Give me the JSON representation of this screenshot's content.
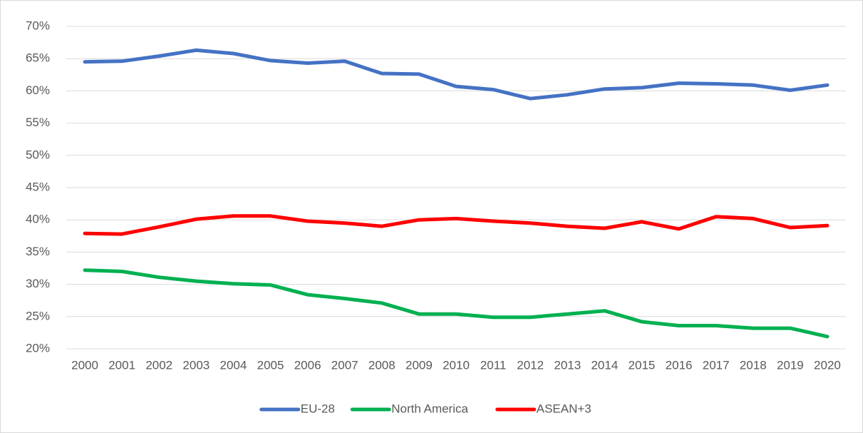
{
  "chart_data": {
    "type": "line",
    "categories": [
      "2000",
      "2001",
      "2002",
      "2003",
      "2004",
      "2005",
      "2006",
      "2007",
      "2008",
      "2009",
      "2010",
      "2011",
      "2012",
      "2013",
      "2014",
      "2015",
      "2016",
      "2017",
      "2018",
      "2019",
      "2020"
    ],
    "series": [
      {
        "name": "EU-28",
        "color": "#4472c4",
        "values": [
          64.5,
          64.6,
          65.4,
          66.3,
          65.8,
          64.7,
          64.3,
          64.6,
          62.7,
          62.6,
          60.7,
          60.2,
          58.8,
          59.4,
          60.3,
          60.5,
          61.2,
          61.1,
          60.9,
          60.1,
          60.9
        ]
      },
      {
        "name": "North America",
        "color": "#00b050",
        "values": [
          32.2,
          32.0,
          31.1,
          30.5,
          30.1,
          29.9,
          28.4,
          27.8,
          27.1,
          25.4,
          25.4,
          24.9,
          24.9,
          25.4,
          25.9,
          24.2,
          23.6,
          23.6,
          23.2,
          23.2,
          21.9
        ]
      },
      {
        "name": "ASEAN+3",
        "color": "#ff0000",
        "values": [
          37.9,
          37.8,
          38.9,
          40.1,
          40.6,
          40.6,
          39.8,
          39.5,
          39.0,
          40.0,
          40.2,
          39.8,
          39.5,
          39.0,
          38.7,
          39.7,
          38.6,
          40.5,
          40.2,
          38.8,
          39.1
        ]
      }
    ],
    "ylim": [
      20,
      70
    ],
    "yticks": [
      {
        "value": 20,
        "label": "20%"
      },
      {
        "value": 25,
        "label": "25%"
      },
      {
        "value": 30,
        "label": "30%"
      },
      {
        "value": 35,
        "label": "35%"
      },
      {
        "value": 40,
        "label": "40%"
      },
      {
        "value": 45,
        "label": "45%"
      },
      {
        "value": 50,
        "label": "50%"
      },
      {
        "value": 55,
        "label": "55%"
      },
      {
        "value": 60,
        "label": "60%"
      },
      {
        "value": 65,
        "label": "65%"
      },
      {
        "value": 70,
        "label": "70%"
      }
    ],
    "grid": true,
    "legend": "bottom"
  }
}
